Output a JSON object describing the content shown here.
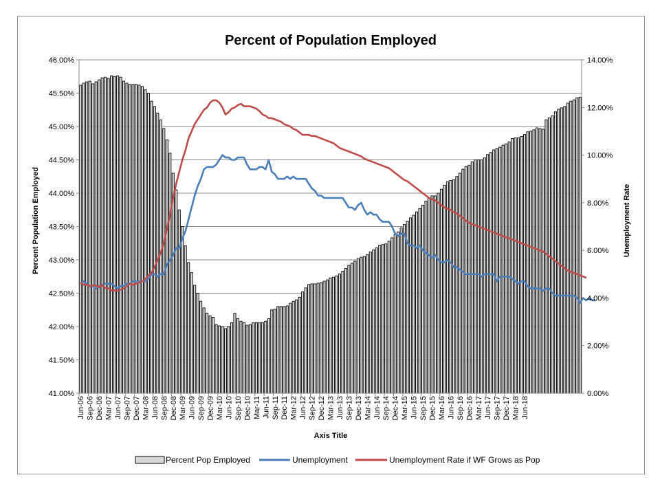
{
  "chart_data": {
    "type": "bar+line",
    "title": "Percent of Population Employed",
    "xlabel": "Axis Title",
    "ylabel_left": "Percent Population Employed",
    "ylabel_right": "Unemployment Rate",
    "ylim_left": [
      41.0,
      46.0
    ],
    "ylim_right": [
      0.0,
      14.0
    ],
    "yticks_left": [
      "41.00%",
      "41.50%",
      "42.00%",
      "42.50%",
      "43.00%",
      "43.50%",
      "44.00%",
      "44.50%",
      "45.00%",
      "45.50%",
      "46.00%"
    ],
    "yticks_right": [
      "0.00%",
      "2.00%",
      "4.00%",
      "6.00%",
      "8.00%",
      "10.00%",
      "12.00%",
      "14.00%"
    ],
    "x_tick_labels": [
      "Jun-06",
      "Sep-06",
      "Dec-06",
      "Mar-07",
      "Jun-07",
      "Sep-07",
      "Dec-07",
      "Mar-08",
      "Jun-08",
      "Sep-08",
      "Dec-08",
      "Mar-09",
      "Jun-09",
      "Sep-09",
      "Dec-09",
      "Mar-10",
      "Jun-10",
      "Sep-10",
      "Dec-10",
      "Mar-11",
      "Jun-11",
      "Sep-11",
      "Dec-11",
      "Mar-12",
      "Jun-12",
      "Sep-12",
      "Dec-12",
      "Mar-13",
      "Jun-13",
      "Sep-13",
      "Dec-13",
      "Mar-14",
      "Jun-14",
      "Sep-14",
      "Dec-14",
      "Mar-15",
      "Jun-15",
      "Sep-15",
      "Dec-15",
      "Mar-16",
      "Jun-16",
      "Sep-16",
      "Dec-16",
      "Mar-17",
      "Jun-17",
      "Sep-17",
      "Dec-17",
      "Mar-18",
      "Jun-18"
    ],
    "grid": true,
    "legend_position": "bottom",
    "series": [
      {
        "name": "Percent Pop Employed",
        "type": "bar",
        "axis": "left",
        "color": "#000000",
        "fill": "#d9d9d9",
        "values": [
          45.62,
          45.65,
          45.67,
          45.68,
          45.64,
          45.67,
          45.7,
          45.73,
          45.74,
          45.72,
          45.76,
          45.75,
          45.76,
          45.74,
          45.68,
          45.65,
          45.63,
          45.63,
          45.63,
          45.62,
          45.6,
          45.55,
          45.5,
          45.38,
          45.3,
          45.2,
          45.1,
          44.97,
          44.8,
          44.6,
          44.3,
          44.05,
          43.75,
          43.5,
          43.21,
          42.96,
          42.81,
          42.62,
          42.5,
          42.38,
          42.28,
          42.2,
          42.16,
          42.14,
          42.03,
          42.01,
          42.0,
          41.97,
          42.0,
          42.06,
          42.2,
          42.12,
          42.08,
          42.06,
          42.02,
          42.03,
          42.06,
          42.06,
          42.06,
          42.06,
          42.08,
          42.12,
          42.25,
          42.26,
          42.3,
          42.3,
          42.3,
          42.31,
          42.35,
          42.38,
          42.4,
          42.44,
          42.52,
          42.58,
          42.63,
          42.64,
          42.64,
          42.65,
          42.66,
          42.68,
          42.7,
          42.73,
          42.74,
          42.76,
          42.79,
          42.83,
          42.87,
          42.92,
          42.95,
          42.98,
          43.02,
          43.04,
          43.05,
          43.08,
          43.12,
          43.15,
          43.18,
          43.22,
          43.23,
          43.24,
          43.28,
          43.33,
          43.38,
          43.42,
          43.48,
          43.53,
          43.58,
          43.63,
          43.67,
          43.72,
          43.77,
          43.82,
          43.88,
          43.93,
          43.96,
          43.96,
          44.0,
          44.06,
          44.12,
          44.17,
          44.19,
          44.2,
          44.25,
          44.3,
          44.36,
          44.4,
          44.42,
          44.47,
          44.5,
          44.5,
          44.5,
          44.53,
          44.58,
          44.61,
          44.65,
          44.67,
          44.69,
          44.72,
          44.74,
          44.77,
          44.82,
          44.83,
          44.83,
          44.85,
          44.88,
          44.92,
          44.93,
          44.95,
          44.98,
          44.97,
          44.96,
          45.1,
          45.13,
          45.16,
          45.22,
          45.26,
          45.28,
          45.3,
          45.35,
          45.38,
          45.4,
          45.43,
          45.44
        ]
      },
      {
        "name": "Unemployment",
        "type": "line",
        "axis": "right",
        "color": "#4a7ebb",
        "values": [
          4.6,
          4.7,
          4.6,
          4.5,
          4.5,
          4.4,
          4.5,
          4.5,
          4.6,
          4.6,
          4.6,
          4.5,
          4.4,
          4.5,
          4.5,
          4.6,
          4.6,
          4.7,
          4.7,
          4.7,
          4.7,
          4.7,
          4.8,
          5.0,
          5.0,
          4.9,
          5.0,
          5.0,
          5.4,
          5.6,
          5.8,
          6.1,
          6.1,
          6.5,
          6.8,
          7.3,
          7.8,
          8.3,
          8.7,
          9.0,
          9.4,
          9.5,
          9.5,
          9.5,
          9.6,
          9.8,
          10.0,
          9.9,
          9.9,
          9.8,
          9.8,
          9.9,
          9.9,
          9.9,
          9.6,
          9.4,
          9.4,
          9.4,
          9.5,
          9.5,
          9.4,
          9.8,
          9.3,
          9.2,
          9.0,
          9.0,
          9.0,
          9.1,
          9.0,
          9.1,
          9.0,
          9.0,
          9.0,
          9.0,
          8.8,
          8.6,
          8.5,
          8.3,
          8.3,
          8.2,
          8.2,
          8.2,
          8.2,
          8.2,
          8.2,
          8.2,
          8.0,
          7.8,
          7.8,
          7.7,
          7.9,
          8.0,
          7.7,
          7.5,
          7.6,
          7.5,
          7.5,
          7.3,
          7.2,
          7.2,
          7.2,
          7.0,
          6.7,
          6.6,
          6.7,
          6.7,
          6.3,
          6.2,
          6.2,
          6.1,
          6.2,
          6.0,
          5.9,
          5.8,
          5.7,
          5.8,
          5.6,
          5.5,
          5.5,
          5.6,
          5.5,
          5.3,
          5.3,
          5.2,
          5.1,
          5.0,
          5.0,
          5.0,
          5.0,
          5.0,
          4.9,
          5.0,
          5.0,
          5.0,
          5.0,
          4.7,
          4.9,
          4.9,
          4.9,
          4.9,
          4.8,
          4.7,
          4.6,
          4.7,
          4.7,
          4.5,
          4.4,
          4.4,
          4.4,
          4.4,
          4.3,
          4.4,
          4.4,
          4.2,
          4.1,
          4.1,
          4.1,
          4.1,
          4.1,
          4.1,
          4.1,
          4.0,
          3.8,
          4.0,
          3.9,
          4.0,
          3.9,
          3.9
        ]
      },
      {
        "name": "Unemployment Rate if WF Grows as Pop",
        "type": "line",
        "axis": "right",
        "color": "#be4b48",
        "values": [
          4.65,
          4.56,
          4.55,
          4.5,
          4.53,
          4.52,
          4.45,
          4.55,
          4.42,
          4.4,
          4.32,
          4.32,
          4.3,
          4.35,
          4.4,
          4.5,
          4.6,
          4.55,
          4.6,
          4.65,
          4.7,
          4.8,
          4.95,
          5.05,
          5.3,
          5.6,
          5.9,
          6.3,
          6.9,
          7.5,
          8.2,
          8.8,
          9.3,
          9.8,
          10.2,
          10.7,
          11.0,
          11.3,
          11.5,
          11.7,
          11.9,
          12.0,
          12.2,
          12.3,
          12.3,
          12.2,
          12.0,
          11.7,
          11.8,
          11.95,
          12.0,
          12.1,
          12.15,
          12.05,
          12.05,
          12.05,
          12.0,
          11.95,
          11.85,
          11.7,
          11.65,
          11.55,
          11.55,
          11.5,
          11.45,
          11.4,
          11.3,
          11.25,
          11.2,
          11.1,
          11.05,
          10.95,
          10.85,
          10.85,
          10.85,
          10.8,
          10.8,
          10.75,
          10.7,
          10.65,
          10.6,
          10.55,
          10.5,
          10.4,
          10.3,
          10.25,
          10.2,
          10.15,
          10.1,
          10.05,
          10.0,
          9.95,
          9.85,
          9.8,
          9.75,
          9.7,
          9.65,
          9.6,
          9.55,
          9.5,
          9.45,
          9.35,
          9.25,
          9.15,
          9.05,
          8.95,
          8.9,
          8.8,
          8.7,
          8.6,
          8.5,
          8.4,
          8.3,
          8.2,
          8.15,
          8.1,
          8.0,
          7.9,
          7.8,
          7.75,
          7.7,
          7.6,
          7.55,
          7.45,
          7.35,
          7.25,
          7.15,
          7.1,
          7.05,
          7.0,
          6.95,
          6.9,
          6.85,
          6.8,
          6.75,
          6.7,
          6.65,
          6.6,
          6.55,
          6.5,
          6.45,
          6.4,
          6.35,
          6.3,
          6.25,
          6.2,
          6.15,
          6.1,
          6.05,
          6.0,
          5.95,
          5.85,
          5.75,
          5.65,
          5.55,
          5.45,
          5.35,
          5.25,
          5.15,
          5.1,
          5.05,
          5.0,
          4.95,
          4.9,
          4.85
        ]
      }
    ]
  }
}
